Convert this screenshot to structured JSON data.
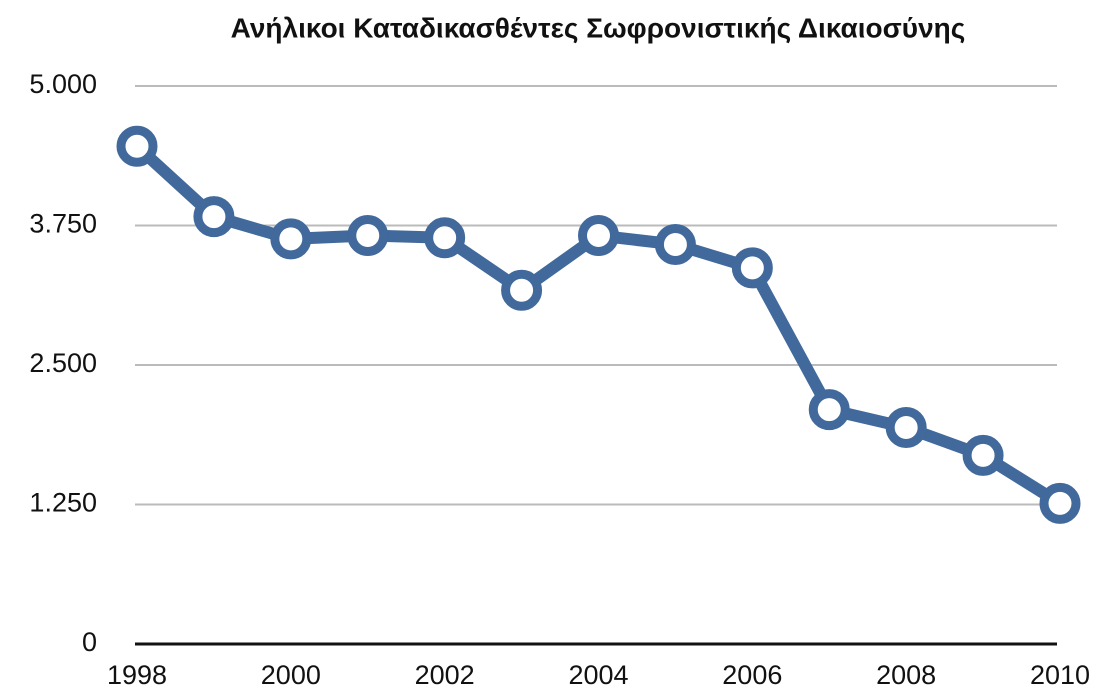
{
  "chart_data": {
    "type": "line",
    "title": "Ανήλικοι Καταδικασθέντες Σωφρονιστικής Δικαιοσύνης",
    "x": [
      1998,
      1999,
      2000,
      2001,
      2002,
      2003,
      2004,
      2005,
      2006,
      2007,
      2008,
      2009,
      2010
    ],
    "series": [
      {
        "color": "#41699b",
        "values": [
          4460,
          3830,
          3630,
          3660,
          3640,
          3170,
          3660,
          3580,
          3370,
          2100,
          1940,
          1690,
          1260
        ]
      }
    ],
    "xlim": [
      1998,
      2010
    ],
    "xticks": [
      1998,
      2000,
      2002,
      2004,
      2006,
      2008,
      2010
    ],
    "ylim": [
      0,
      5000
    ],
    "yticks": [
      0,
      {
        "value": 1250,
        "label": "1.250"
      },
      {
        "value": 2500,
        "label": "2.500"
      },
      {
        "value": 3750,
        "label": "3.750"
      },
      {
        "value": 5000,
        "label": "5.000"
      }
    ],
    "grid": true
  }
}
